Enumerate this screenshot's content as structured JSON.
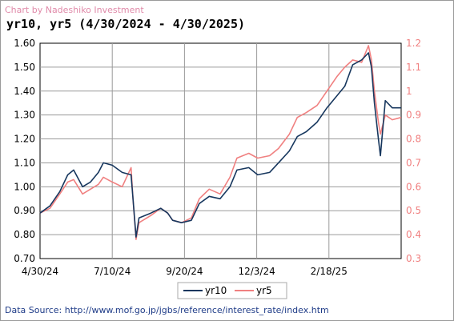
{
  "credit": "Chart by Nadeshiko Investment",
  "source": "Data Source: http://www.mof.go.jp/jgbs/reference/interest_rate/index.htm",
  "chart_data": {
    "type": "line",
    "title": "yr10, yr5 (4/30/2024 - 4/30/2025)",
    "x_tick_labels": [
      "4/30/24",
      "7/10/24",
      "9/20/24",
      "12/3/24",
      "2/18/25"
    ],
    "y_left": {
      "ylim": [
        0.7,
        1.6
      ],
      "tick_labels": [
        "1.60",
        "1.50",
        "1.40",
        "1.30",
        "1.20",
        "1.10",
        "1.00",
        "0.90",
        "0.80",
        "0.70"
      ]
    },
    "y_right": {
      "ylim": [
        0.3,
        1.2
      ],
      "tick_labels": [
        "1.2",
        "1.1",
        "1",
        "0.9",
        "0.8",
        "0.7",
        "0.6",
        "0.5",
        "0.4",
        "0.3"
      ]
    },
    "grid": true,
    "legend": "bottom-center",
    "x_range": [
      "2024-04-30",
      "2025-04-30"
    ],
    "series": [
      {
        "name": "yr10",
        "axis": "left",
        "color": "#17375e",
        "points": [
          [
            "2024-04-30",
            0.89
          ],
          [
            "2024-05-10",
            0.92
          ],
          [
            "2024-05-20",
            0.98
          ],
          [
            "2024-05-28",
            1.05
          ],
          [
            "2024-06-03",
            1.07
          ],
          [
            "2024-06-12",
            1.0
          ],
          [
            "2024-06-20",
            1.02
          ],
          [
            "2024-06-28",
            1.06
          ],
          [
            "2024-07-03",
            1.1
          ],
          [
            "2024-07-12",
            1.09
          ],
          [
            "2024-07-22",
            1.06
          ],
          [
            "2024-07-31",
            1.05
          ],
          [
            "2024-08-02",
            0.95
          ],
          [
            "2024-08-05",
            0.79
          ],
          [
            "2024-08-08",
            0.87
          ],
          [
            "2024-08-20",
            0.89
          ],
          [
            "2024-08-30",
            0.91
          ],
          [
            "2024-09-06",
            0.89
          ],
          [
            "2024-09-11",
            0.86
          ],
          [
            "2024-09-20",
            0.85
          ],
          [
            "2024-09-30",
            0.86
          ],
          [
            "2024-10-08",
            0.93
          ],
          [
            "2024-10-18",
            0.96
          ],
          [
            "2024-10-29",
            0.95
          ],
          [
            "2024-11-08",
            1.0
          ],
          [
            "2024-11-15",
            1.07
          ],
          [
            "2024-11-27",
            1.08
          ],
          [
            "2024-12-06",
            1.05
          ],
          [
            "2024-12-18",
            1.06
          ],
          [
            "2024-12-27",
            1.1
          ],
          [
            "2025-01-07",
            1.15
          ],
          [
            "2025-01-15",
            1.21
          ],
          [
            "2025-01-24",
            1.23
          ],
          [
            "2025-02-04",
            1.27
          ],
          [
            "2025-02-14",
            1.33
          ],
          [
            "2025-02-24",
            1.38
          ],
          [
            "2025-03-04",
            1.42
          ],
          [
            "2025-03-12",
            1.51
          ],
          [
            "2025-03-21",
            1.53
          ],
          [
            "2025-03-28",
            1.56
          ],
          [
            "2025-03-31",
            1.5
          ],
          [
            "2025-04-03",
            1.35
          ],
          [
            "2025-04-07",
            1.2
          ],
          [
            "2025-04-09",
            1.13
          ],
          [
            "2025-04-14",
            1.36
          ],
          [
            "2025-04-21",
            1.33
          ],
          [
            "2025-04-30",
            1.33
          ]
        ]
      },
      {
        "name": "yr5",
        "axis": "right",
        "color": "#f08080",
        "points": [
          [
            "2024-04-30",
            0.49
          ],
          [
            "2024-05-10",
            0.51
          ],
          [
            "2024-05-20",
            0.57
          ],
          [
            "2024-05-28",
            0.62
          ],
          [
            "2024-06-03",
            0.63
          ],
          [
            "2024-06-12",
            0.57
          ],
          [
            "2024-06-20",
            0.59
          ],
          [
            "2024-06-28",
            0.61
          ],
          [
            "2024-07-03",
            0.64
          ],
          [
            "2024-07-12",
            0.62
          ],
          [
            "2024-07-22",
            0.6
          ],
          [
            "2024-07-31",
            0.68
          ],
          [
            "2024-08-02",
            0.55
          ],
          [
            "2024-08-05",
            0.38
          ],
          [
            "2024-08-08",
            0.45
          ],
          [
            "2024-08-20",
            0.48
          ],
          [
            "2024-08-30",
            0.51
          ],
          [
            "2024-09-06",
            0.49
          ],
          [
            "2024-09-11",
            0.46
          ],
          [
            "2024-09-20",
            0.45
          ],
          [
            "2024-09-30",
            0.47
          ],
          [
            "2024-10-08",
            0.55
          ],
          [
            "2024-10-18",
            0.59
          ],
          [
            "2024-10-29",
            0.57
          ],
          [
            "2024-11-08",
            0.64
          ],
          [
            "2024-11-15",
            0.72
          ],
          [
            "2024-11-27",
            0.74
          ],
          [
            "2024-12-06",
            0.72
          ],
          [
            "2024-12-18",
            0.73
          ],
          [
            "2024-12-27",
            0.76
          ],
          [
            "2025-01-07",
            0.82
          ],
          [
            "2025-01-15",
            0.89
          ],
          [
            "2025-01-24",
            0.91
          ],
          [
            "2025-02-04",
            0.94
          ],
          [
            "2025-02-14",
            1.0
          ],
          [
            "2025-02-24",
            1.06
          ],
          [
            "2025-03-04",
            1.1
          ],
          [
            "2025-03-12",
            1.13
          ],
          [
            "2025-03-21",
            1.12
          ],
          [
            "2025-03-28",
            1.19
          ],
          [
            "2025-03-31",
            1.13
          ],
          [
            "2025-04-03",
            1.0
          ],
          [
            "2025-04-07",
            0.87
          ],
          [
            "2025-04-09",
            0.82
          ],
          [
            "2025-04-14",
            0.9
          ],
          [
            "2025-04-21",
            0.88
          ],
          [
            "2025-04-30",
            0.89
          ]
        ]
      }
    ]
  }
}
